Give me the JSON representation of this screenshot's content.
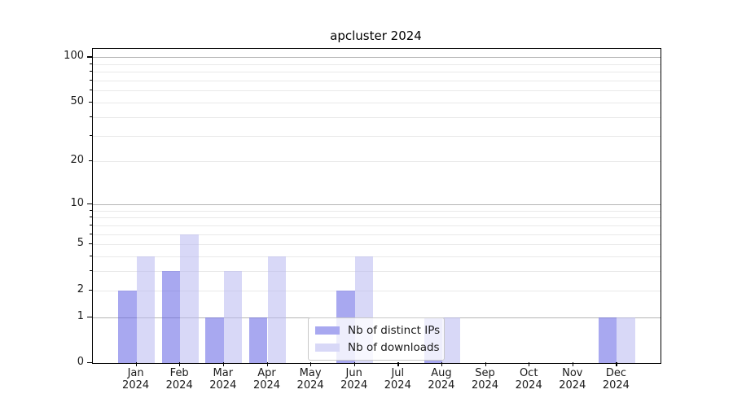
{
  "title": "apcluster 2024",
  "legend": {
    "items": [
      {
        "key": "ips",
        "label": "Nb of distinct IPs"
      },
      {
        "key": "downloads",
        "label": "Nb of downloads"
      }
    ]
  },
  "colors": {
    "ips_fill": "rgba(97,97,228,0.55)",
    "downloads_fill": "rgba(184,184,240,0.55)",
    "ips_solid": "#a8a8f0",
    "downloads_solid": "#d8d8f7",
    "grid_major": "#b5b5b5",
    "grid_minor": "#e9e9e9",
    "axis": "#000000",
    "text": "#1a1a1a"
  },
  "y_axis": {
    "labeled_ticks": [
      0,
      1,
      2,
      5,
      10,
      20,
      50,
      100
    ],
    "major_gridlines": [
      1,
      10,
      100
    ],
    "minor_gridlines": [
      2,
      3,
      4,
      5,
      6,
      7,
      8,
      9,
      20,
      30,
      40,
      50,
      60,
      70,
      80,
      90
    ],
    "minor_tick_marks": [
      3,
      4,
      6,
      7,
      8,
      9,
      30,
      40,
      60,
      70,
      80,
      90
    ]
  },
  "x_axis": {
    "months": [
      "Jan",
      "Feb",
      "Mar",
      "Apr",
      "May",
      "Jun",
      "Jul",
      "Aug",
      "Sep",
      "Oct",
      "Nov",
      "Dec"
    ],
    "year": "2024"
  },
  "chart_data": {
    "type": "bar",
    "title": "apcluster 2024",
    "categories": [
      "Jan 2024",
      "Feb 2024",
      "Mar 2024",
      "Apr 2024",
      "May 2024",
      "Jun 2024",
      "Jul 2024",
      "Aug 2024",
      "Sep 2024",
      "Oct 2024",
      "Nov 2024",
      "Dec 2024"
    ],
    "series": [
      {
        "name": "Nb of distinct IPs",
        "values": [
          2,
          3,
          1,
          1,
          0,
          2,
          0,
          1,
          0,
          0,
          0,
          1
        ]
      },
      {
        "name": "Nb of downloads",
        "values": [
          4,
          6,
          3,
          4,
          0,
          4,
          0,
          1,
          0,
          0,
          0,
          1
        ]
      }
    ],
    "xlabel": "",
    "ylabel": "",
    "yscale": "log1p",
    "ylim": [
      0,
      113
    ],
    "y_ticks": [
      0,
      1,
      2,
      5,
      10,
      20,
      50,
      100
    ],
    "grid": true,
    "legend_position": "lower center-right, inside plot"
  }
}
